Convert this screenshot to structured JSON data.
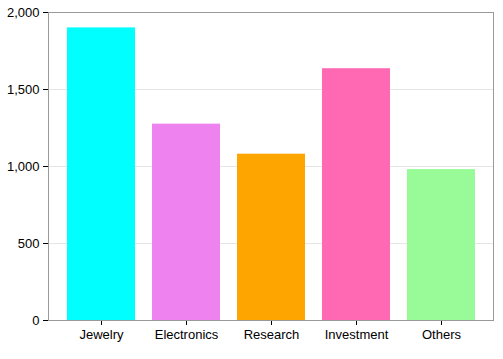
{
  "chart_data": {
    "type": "bar",
    "categories": [
      "Jewelry",
      "Electronics",
      "Research",
      "Investment",
      "Others"
    ],
    "values": [
      1900,
      1275,
      1080,
      1635,
      980
    ],
    "colors": [
      "#00ffff",
      "#ee82ee",
      "#ffa500",
      "#ff69b4",
      "#98fb98"
    ],
    "ylim": [
      0,
      2000
    ],
    "yticks": [
      0,
      500,
      1000,
      1500,
      2000
    ],
    "grid": true
  }
}
